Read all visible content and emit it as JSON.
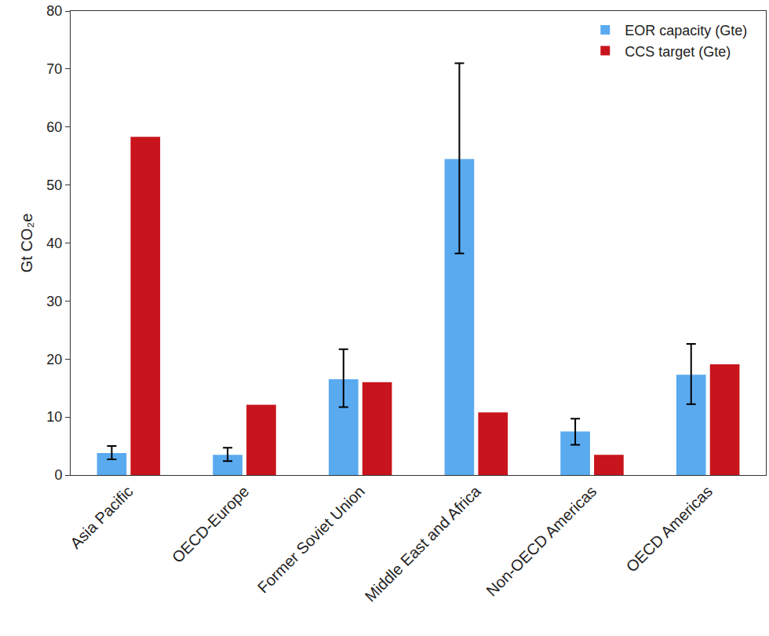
{
  "chart_data": {
    "type": "bar",
    "y_label": "Gt CO₂e",
    "categories": [
      "Asia Pacific",
      "OECD-Europe",
      "Former Soviet Union",
      "Middle East and Africa",
      "Non-OECD Americas",
      "OECD Americas"
    ],
    "series": [
      {
        "name": "EOR capacity (Gte)",
        "color": "#5aaaf0",
        "values": [
          3.8,
          3.5,
          16.5,
          54.5,
          7.5,
          17.3
        ],
        "error_minus": [
          1.1,
          1.1,
          4.8,
          16.3,
          2.3,
          5.1
        ],
        "error_plus": [
          1.2,
          1.2,
          5.2,
          16.5,
          2.2,
          5.3
        ]
      },
      {
        "name": "CCS target (Gte)",
        "color": "#c8141c",
        "values": [
          58.3,
          12.1,
          16.0,
          10.8,
          3.5,
          19.1
        ]
      }
    ],
    "ylim": [
      0,
      80
    ],
    "yticks": [
      0,
      10,
      20,
      30,
      40,
      50,
      60,
      70,
      80
    ],
    "grid": false,
    "legend": "top right"
  }
}
